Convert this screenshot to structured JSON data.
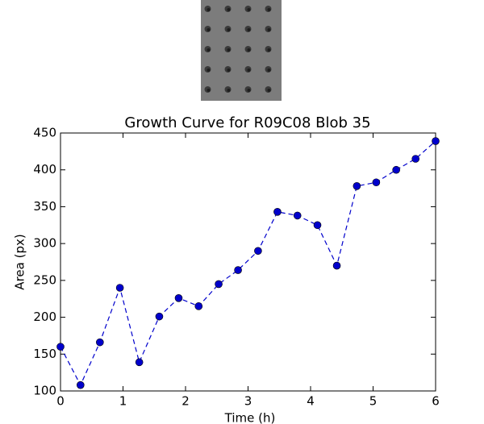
{
  "chart_data": {
    "type": "line",
    "title": "Growth Curve for R09C08 Blob 35",
    "x_label": "Time (h)",
    "y_label": "Area (px)",
    "x": [
      0,
      0.32,
      0.63,
      0.95,
      1.26,
      1.58,
      1.89,
      2.21,
      2.53,
      2.84,
      3.16,
      3.47,
      3.79,
      4.11,
      4.42,
      4.74,
      5.05,
      5.37,
      5.68,
      6
    ],
    "series": [
      {
        "name": "Area",
        "color": "#0000cc",
        "values": [
          160,
          108,
          166,
          240,
          139,
          201,
          226,
          215,
          245,
          264,
          290,
          343,
          338,
          325,
          270,
          378,
          383,
          400,
          415,
          439
        ]
      }
    ],
    "xlim": [
      0,
      6
    ],
    "xticks": [
      0,
      1,
      2,
      3,
      4,
      5,
      6
    ],
    "ylim": [
      100,
      450
    ],
    "yticks": [
      100,
      150,
      200,
      250,
      300,
      350,
      400,
      450
    ]
  }
}
